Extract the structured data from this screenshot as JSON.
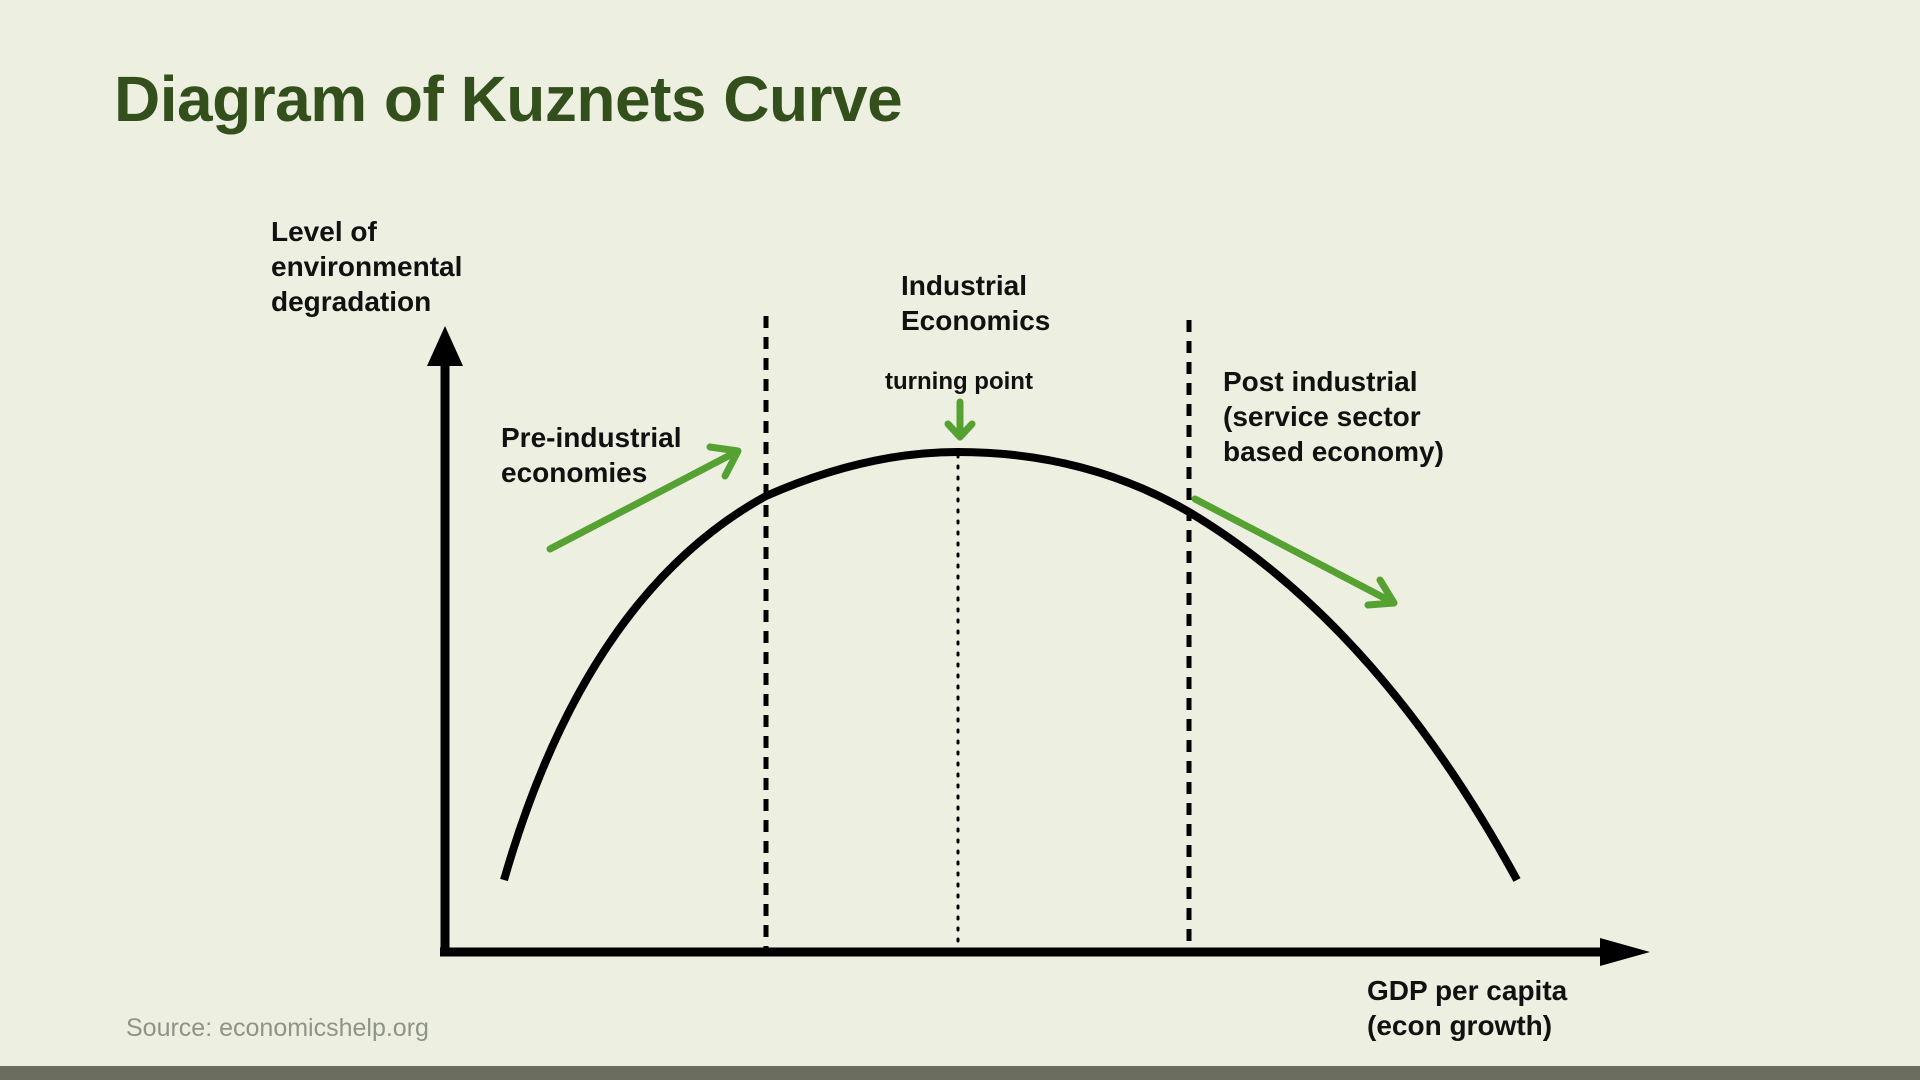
{
  "title": "Diagram of Kuznets Curve",
  "y_axis_label": [
    "Level of",
    "environmental",
    "degradation"
  ],
  "x_axis_label": [
    "GDP per capita",
    "(econ growth)"
  ],
  "stages": {
    "pre_industrial": [
      "Pre-industrial",
      "economies"
    ],
    "industrial": [
      "Industrial",
      "Economics"
    ],
    "post_industrial": [
      "Post industrial",
      "(service sector",
      "based economy)"
    ]
  },
  "turning_point_label": "turning point",
  "source": "Source: economicshelp.org",
  "colors": {
    "background": "#edefe0",
    "title": "#33501c",
    "curve": "#000000",
    "arrow": "#55a232",
    "source": "#8f9488",
    "footer_bar": "#6b6d5e"
  }
}
